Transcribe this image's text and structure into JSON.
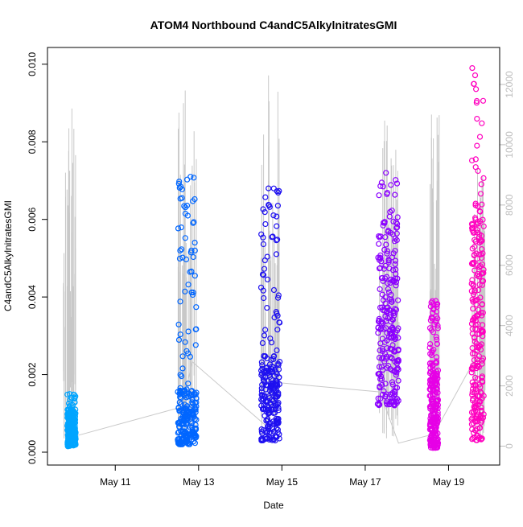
{
  "chart_data": {
    "type": "scatter",
    "title": "ATOM4 Northbound C4andC5AlkylnitratesGMI",
    "xlabel": "Date",
    "ylabel": "C4andC5AlkylnitratesGMI",
    "secondary_ylabel": "",
    "x_tick_labels": [
      "May 11",
      "May 13",
      "May 15",
      "May 17",
      "May 19"
    ],
    "x_tick_values": [
      11,
      13,
      15,
      17,
      19
    ],
    "xlim": [
      9.45,
      20.15
    ],
    "ylim": [
      0.0,
      0.0101
    ],
    "y_ticks": [
      "0.000",
      "0.002",
      "0.004",
      "0.006",
      "0.008",
      "0.010"
    ],
    "y_tick_values": [
      0.0,
      0.002,
      0.004,
      0.006,
      0.008,
      0.01
    ],
    "y2lim": [
      -200,
      12800
    ],
    "y2_ticks": [
      "0",
      "2000",
      "4000",
      "6000",
      "8000",
      "10000",
      "12000"
    ],
    "y2_tick_values": [
      0,
      2000,
      4000,
      6000,
      8000,
      10000,
      12000
    ],
    "grid": false,
    "series": [
      {
        "color": "#00A5FF",
        "x_range": [
          9.85,
          10.05
        ],
        "y_bulk": [
          0.00015,
          0.0011
        ],
        "y_sparse_max": 0.0015
      },
      {
        "color": "#0066FF",
        "x_range": [
          12.5,
          12.95
        ],
        "y_bulk": [
          0.0002,
          0.0016
        ],
        "y_sparse_max": 0.0071
      },
      {
        "color": "#1E10F0",
        "x_range": [
          14.5,
          14.95
        ],
        "y_bulk": [
          0.0003,
          0.0025
        ],
        "y_sparse_max": 0.0068
      },
      {
        "color": "#8B00FF",
        "x_range": [
          17.3,
          17.8
        ],
        "y_bulk": [
          0.0012,
          0.006
        ],
        "y_sparse_max": 0.0072
      },
      {
        "color": "#E600E6",
        "x_range": [
          18.55,
          18.75
        ],
        "y_bulk": [
          0.0001,
          0.0023
        ],
        "y_sparse_max": 0.0039
      },
      {
        "color": "#FF00BF",
        "x_range": [
          19.55,
          19.85
        ],
        "y_bulk": [
          0.0003,
          0.006
        ],
        "y_sparse_max": 0.0099
      }
    ],
    "altitude_trace": {
      "color": "#C8C8C8",
      "mean_path": [
        [
          9.95,
          300
        ],
        [
          12.6,
          1300
        ],
        [
          12.85,
          2800
        ],
        [
          14.6,
          700
        ],
        [
          14.95,
          2100
        ],
        [
          17.35,
          1800
        ],
        [
          17.8,
          100
        ],
        [
          18.65,
          400
        ],
        [
          19.6,
          2800
        ]
      ],
      "spike_clusters": [
        {
          "x_range": [
            9.75,
            10.05
          ],
          "max": 11200
        },
        {
          "x_range": [
            12.5,
            12.95
          ],
          "max": 11800
        },
        {
          "x_range": [
            14.5,
            14.95
          ],
          "max": 12300
        },
        {
          "x_range": [
            17.3,
            17.85
          ],
          "max": 10800
        },
        {
          "x_range": [
            18.55,
            18.8
          ],
          "max": 11000
        },
        {
          "x_range": [
            19.55,
            19.9
          ],
          "max": 9200
        }
      ]
    }
  }
}
